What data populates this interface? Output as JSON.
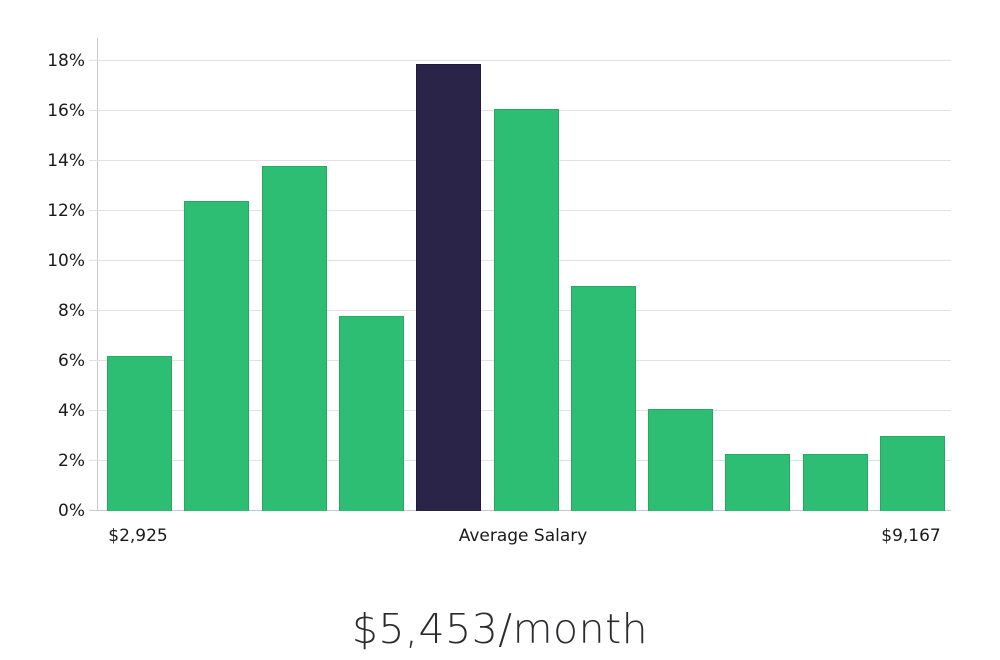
{
  "chart_data": {
    "type": "bar",
    "title": "$5,453/month",
    "values": [
      6.2,
      12.4,
      13.8,
      7.8,
      17.9,
      16.1,
      9.0,
      4.1,
      2.3,
      2.3,
      3.0
    ],
    "highlight_index": 4,
    "bar_color": "#2dbe74",
    "bar_border_color": "#26a865",
    "highlight_color": "#2a2449",
    "highlight_border_color": "#211c3a",
    "y_ticks": [
      "0%",
      "2%",
      "4%",
      "6%",
      "8%",
      "10%",
      "12%",
      "14%",
      "16%",
      "18%"
    ],
    "y_tick_values": [
      0,
      2,
      4,
      6,
      8,
      10,
      12,
      14,
      16,
      18
    ],
    "ylim": [
      0,
      18.9
    ],
    "xlabel": "",
    "ylabel": "",
    "x_labels": {
      "left": "$2,925",
      "center": "Average Salary",
      "right": "$9,167"
    },
    "grid": true,
    "gridline_color": "#e2e2e2",
    "axis_color": "#c9c9c9",
    "legend": null
  }
}
